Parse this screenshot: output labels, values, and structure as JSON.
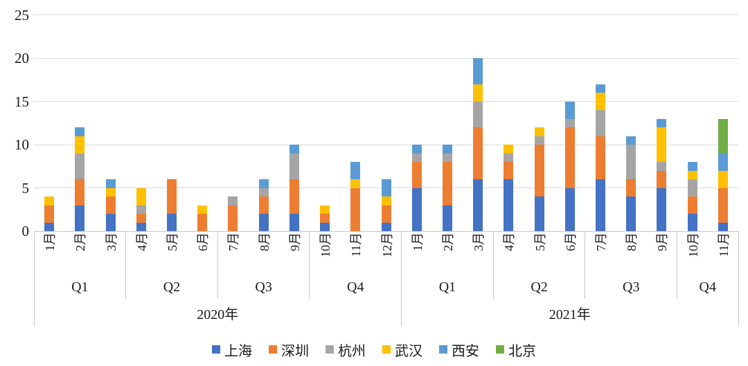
{
  "chart_data": {
    "type": "bar",
    "subtype": "stacked-column",
    "title": "",
    "xlabel": "",
    "ylabel": "",
    "ylim": [
      0,
      25
    ],
    "yticks": [
      0,
      5,
      10,
      15,
      20,
      25
    ],
    "grid": true,
    "legend_position": "bottom",
    "axis_colors": {
      "gridline": "#d9d9d9",
      "axis_border": "#c6c6c6",
      "text": "#1a1a1a"
    },
    "years": [
      {
        "label": "2020年",
        "quarters": [
          {
            "label": "Q1",
            "months": [
              "1月",
              "2月",
              "3月"
            ]
          },
          {
            "label": "Q2",
            "months": [
              "4月",
              "5月",
              "6月"
            ]
          },
          {
            "label": "Q3",
            "months": [
              "7月",
              "8月",
              "9月"
            ]
          },
          {
            "label": "Q4",
            "months": [
              "10月",
              "11月",
              "12月"
            ]
          }
        ]
      },
      {
        "label": "2021年",
        "quarters": [
          {
            "label": "Q1",
            "months": [
              "1月",
              "2月",
              "3月"
            ]
          },
          {
            "label": "Q2",
            "months": [
              "4月",
              "5月",
              "6月"
            ]
          },
          {
            "label": "Q3",
            "months": [
              "7月",
              "8月",
              "9月"
            ]
          },
          {
            "label": "Q4",
            "months": [
              "10月",
              "11月"
            ]
          }
        ]
      }
    ],
    "series": [
      {
        "name": "上海",
        "color": "#4472C4",
        "values": [
          1,
          3,
          2,
          1,
          2,
          0,
          0,
          2,
          2,
          1,
          0,
          1,
          5,
          3,
          6,
          6,
          4,
          5,
          6,
          4,
          5,
          2,
          1
        ]
      },
      {
        "name": "深圳",
        "color": "#ED7D31",
        "values": [
          2,
          3,
          2,
          1,
          4,
          2,
          3,
          2,
          4,
          1,
          5,
          2,
          3,
          5,
          6,
          2,
          6,
          7,
          5,
          2,
          2,
          2,
          4
        ]
      },
      {
        "name": "杭州",
        "color": "#A5A5A5",
        "values": [
          0,
          3,
          0,
          1,
          0,
          0,
          1,
          1,
          3,
          0,
          0,
          0,
          1,
          1,
          3,
          1,
          1,
          1,
          3,
          4,
          1,
          2,
          0
        ]
      },
      {
        "name": "武汉",
        "color": "#FFC000",
        "values": [
          1,
          2,
          1,
          2,
          0,
          1,
          0,
          0,
          0,
          1,
          1,
          1,
          0,
          0,
          2,
          1,
          1,
          0,
          2,
          0,
          4,
          1,
          2
        ]
      },
      {
        "name": "西安",
        "color": "#5B9BD5",
        "values": [
          0,
          1,
          1,
          0,
          0,
          0,
          0,
          1,
          1,
          0,
          2,
          2,
          1,
          1,
          3,
          0,
          0,
          2,
          1,
          1,
          1,
          1,
          2
        ]
      },
      {
        "name": "北京",
        "color": "#70AD47",
        "values": [
          0,
          0,
          0,
          0,
          0,
          0,
          0,
          0,
          0,
          0,
          0,
          0,
          0,
          0,
          0,
          0,
          0,
          0,
          0,
          0,
          0,
          0,
          4
        ]
      }
    ]
  }
}
